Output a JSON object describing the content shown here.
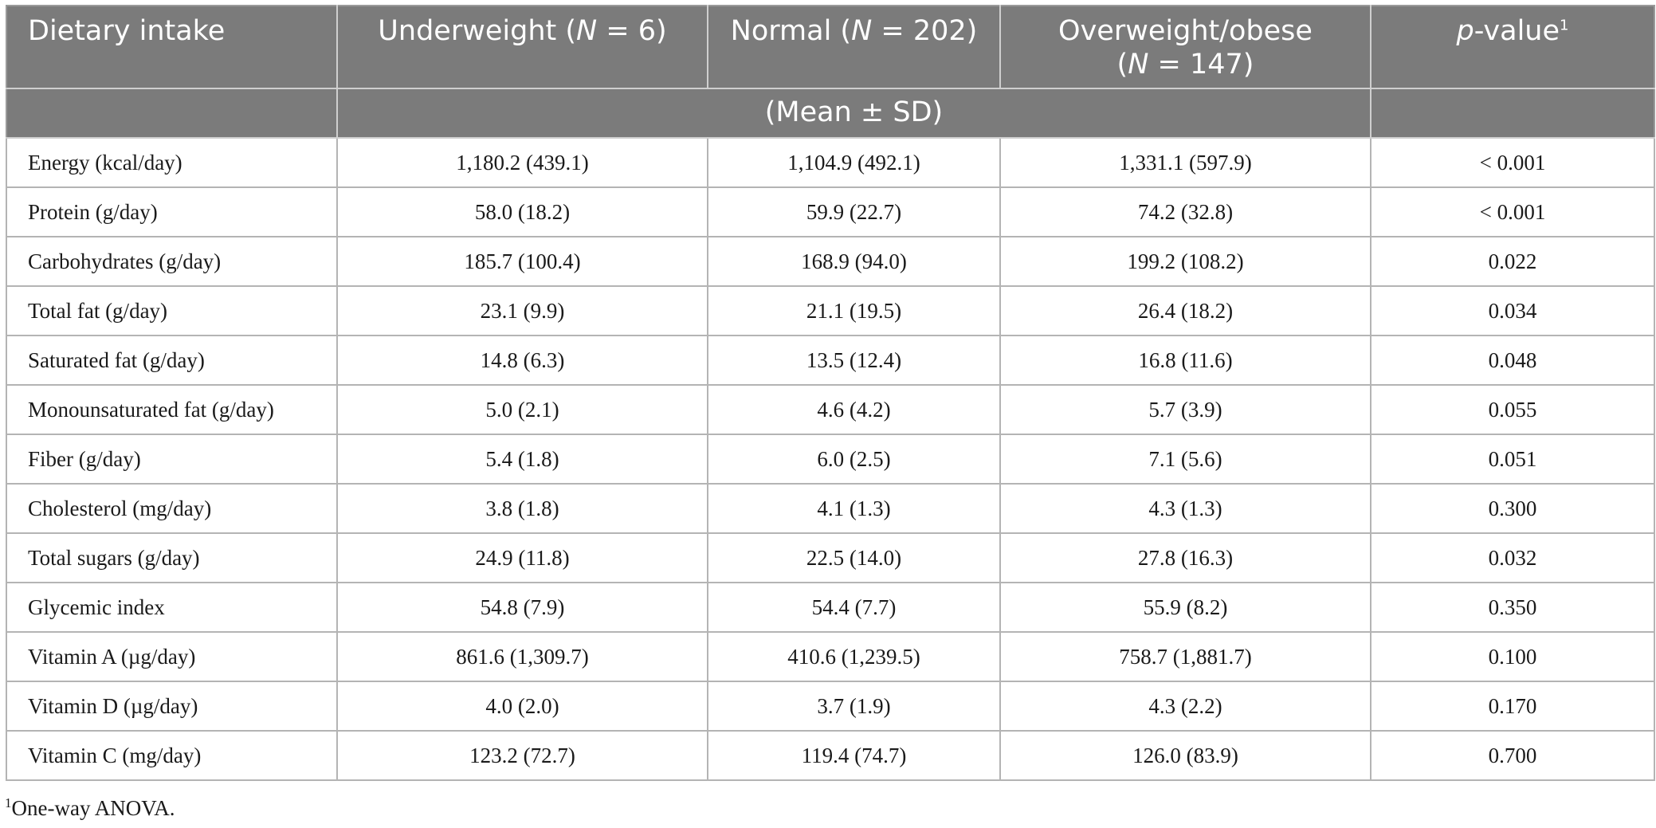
{
  "table": {
    "header": {
      "col0": "Dietary intake",
      "underweight": {
        "label": "Underweight (",
        "n_label": "N",
        "n_rest": " = 6)"
      },
      "normal": {
        "label": "Normal (",
        "n_label": "N",
        "n_rest": " = 202)"
      },
      "overweight": {
        "label_line1": "Overweight/obese",
        "n_open": "(",
        "n_label": "N",
        "n_rest": " = 147)"
      },
      "pvalue": {
        "p": "p",
        "rest": "-value",
        "footnote_mark": "1"
      },
      "subheader": "(Mean ± SD)"
    },
    "rows": [
      {
        "label": "Energy (kcal/day)",
        "underweight": "1,180.2 (439.1)",
        "normal": "1,104.9 (492.1)",
        "overweight": "1,331.1 (597.9)",
        "p": "< 0.001"
      },
      {
        "label": "Protein (g/day)",
        "underweight": "58.0 (18.2)",
        "normal": "59.9 (22.7)",
        "overweight": "74.2 (32.8)",
        "p": "< 0.001"
      },
      {
        "label": "Carbohydrates (g/day)",
        "underweight": "185.7 (100.4)",
        "normal": "168.9 (94.0)",
        "overweight": "199.2 (108.2)",
        "p": "0.022"
      },
      {
        "label": "Total fat (g/day)",
        "underweight": "23.1 (9.9)",
        "normal": "21.1 (19.5)",
        "overweight": "26.4 (18.2)",
        "p": "0.034"
      },
      {
        "label": "Saturated fat (g/day)",
        "underweight": "14.8 (6.3)",
        "normal": "13.5 (12.4)",
        "overweight": "16.8 (11.6)",
        "p": "0.048"
      },
      {
        "label": "Monounsaturated fat (g/day)",
        "underweight": "5.0 (2.1)",
        "normal": "4.6 (4.2)",
        "overweight": "5.7 (3.9)",
        "p": "0.055"
      },
      {
        "label": "Fiber (g/day)",
        "underweight": "5.4 (1.8)",
        "normal": "6.0 (2.5)",
        "overweight": "7.1 (5.6)",
        "p": "0.051"
      },
      {
        "label": "Cholesterol (mg/day)",
        "underweight": "3.8 (1.8)",
        "normal": "4.1 (1.3)",
        "overweight": "4.3 (1.3)",
        "p": "0.300"
      },
      {
        "label": "Total sugars (g/day)",
        "underweight": "24.9 (11.8)",
        "normal": "22.5 (14.0)",
        "overweight": "27.8 (16.3)",
        "p": "0.032"
      },
      {
        "label": "Glycemic index",
        "underweight": "54.8 (7.9)",
        "normal": "54.4 (7.7)",
        "overweight": "55.9 (8.2)",
        "p": "0.350"
      },
      {
        "label": "Vitamin A (µg/day)",
        "underweight": "861.6 (1,309.7)",
        "normal": "410.6 (1,239.5)",
        "overweight": "758.7 (1,881.7)",
        "p": "0.100"
      },
      {
        "label": "Vitamin D (µg/day)",
        "underweight": "4.0 (2.0)",
        "normal": "3.7 (1.9)",
        "overweight": "4.3 (2.2)",
        "p": "0.170"
      },
      {
        "label": "Vitamin C (mg/day)",
        "underweight": "123.2 (72.7)",
        "normal": "119.4 (74.7)",
        "overweight": "126.0 (83.9)",
        "p": "0.700"
      }
    ]
  },
  "footnote": {
    "mark": "1",
    "text": "One-way ANOVA."
  }
}
